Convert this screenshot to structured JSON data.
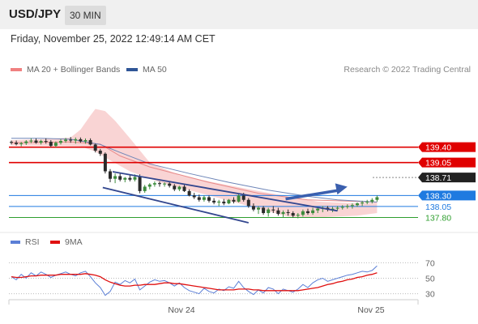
{
  "header": {
    "symbol": "USD/JPY",
    "timeframe": "30 MIN"
  },
  "datetime": "Friday, November 25, 2022 12:49:14 AM CET",
  "legend": {
    "ma_bb": {
      "label": "MA 20 + Bollinger Bands",
      "color": "#f08080"
    },
    "ma50": {
      "label": "MA 50",
      "color": "#2f5597"
    }
  },
  "credit": "Research © 2022 Trading Central",
  "rsi_legend": {
    "rsi": {
      "label": "RSI",
      "color": "#5b7fd6"
    },
    "ma9": {
      "label": "9MA",
      "color": "#e01010"
    }
  },
  "chart_data": [
    {
      "type": "candlestick",
      "price_ylim": [
        137.55,
        140.5
      ],
      "x_tick_labels": [
        {
          "label": "Nov 24",
          "index": 40
        },
        {
          "label": "Nov 25",
          "index": 89
        }
      ],
      "candles": [
        [
          139.52,
          139.55,
          139.46,
          139.5
        ],
        [
          139.5,
          139.55,
          139.44,
          139.47
        ],
        [
          139.47,
          139.52,
          139.42,
          139.49
        ],
        [
          139.49,
          139.56,
          139.45,
          139.53
        ],
        [
          139.53,
          139.6,
          139.49,
          139.55
        ],
        [
          139.55,
          139.6,
          139.48,
          139.5
        ],
        [
          139.5,
          139.57,
          139.46,
          139.54
        ],
        [
          139.54,
          139.6,
          139.48,
          139.52
        ],
        [
          139.52,
          139.56,
          139.4,
          139.43
        ],
        [
          139.43,
          139.53,
          139.4,
          139.5
        ],
        [
          139.5,
          139.58,
          139.46,
          139.54
        ],
        [
          139.54,
          139.61,
          139.5,
          139.57
        ],
        [
          139.57,
          139.63,
          139.5,
          139.55
        ],
        [
          139.55,
          139.62,
          139.48,
          139.58
        ],
        [
          139.58,
          139.62,
          139.5,
          139.53
        ],
        [
          139.53,
          139.6,
          139.48,
          139.56
        ],
        [
          139.56,
          139.6,
          139.44,
          139.46
        ],
        [
          139.46,
          139.48,
          139.28,
          139.32
        ],
        [
          139.32,
          139.36,
          139.2,
          139.25
        ],
        [
          139.25,
          139.28,
          138.8,
          138.85
        ],
        [
          138.85,
          138.9,
          138.6,
          138.68
        ],
        [
          138.68,
          138.8,
          138.58,
          138.74
        ],
        [
          138.74,
          138.82,
          138.62,
          138.66
        ],
        [
          138.66,
          138.72,
          138.6,
          138.7
        ],
        [
          138.7,
          138.76,
          138.62,
          138.66
        ],
        [
          138.66,
          138.78,
          138.62,
          138.72
        ],
        [
          138.72,
          138.78,
          138.35,
          138.4
        ],
        [
          138.4,
          138.54,
          138.36,
          138.5
        ],
        [
          138.5,
          138.58,
          138.44,
          138.55
        ],
        [
          138.55,
          138.62,
          138.5,
          138.58
        ],
        [
          138.58,
          138.62,
          138.5,
          138.56
        ],
        [
          138.56,
          138.6,
          138.5,
          138.57
        ],
        [
          138.57,
          138.6,
          138.48,
          138.52
        ],
        [
          138.52,
          138.56,
          138.4,
          138.44
        ],
        [
          138.44,
          138.52,
          138.4,
          138.5
        ],
        [
          138.5,
          138.54,
          138.38,
          138.4
        ],
        [
          138.4,
          138.44,
          138.28,
          138.3
        ],
        [
          138.3,
          138.36,
          138.22,
          138.26
        ],
        [
          138.26,
          138.32,
          138.16,
          138.2
        ],
        [
          138.2,
          138.3,
          138.16,
          138.26
        ],
        [
          138.26,
          138.3,
          138.14,
          138.18
        ],
        [
          138.18,
          138.24,
          138.1,
          138.14
        ],
        [
          138.14,
          138.2,
          138.06,
          138.16
        ],
        [
          138.16,
          138.22,
          138.08,
          138.12
        ],
        [
          138.12,
          138.22,
          138.1,
          138.2
        ],
        [
          138.2,
          138.26,
          138.12,
          138.16
        ],
        [
          138.16,
          138.34,
          138.14,
          138.3
        ],
        [
          138.3,
          138.36,
          138.16,
          138.2
        ],
        [
          138.2,
          138.24,
          138.02,
          138.06
        ],
        [
          138.06,
          138.12,
          137.94,
          137.98
        ],
        [
          137.98,
          138.06,
          137.88,
          138.02
        ],
        [
          138.02,
          138.06,
          137.86,
          137.9
        ],
        [
          137.9,
          138.02,
          137.82,
          137.98
        ],
        [
          137.98,
          138.06,
          137.9,
          137.96
        ],
        [
          137.96,
          138.02,
          137.84,
          137.88
        ],
        [
          137.88,
          137.96,
          137.8,
          137.92
        ],
        [
          137.92,
          137.98,
          137.84,
          137.9
        ],
        [
          137.9,
          137.94,
          137.8,
          137.84
        ],
        [
          137.84,
          137.9,
          137.78,
          137.86
        ],
        [
          137.86,
          137.98,
          137.82,
          137.94
        ],
        [
          137.94,
          138.0,
          137.86,
          137.9
        ],
        [
          137.9,
          138.02,
          137.86,
          137.96
        ],
        [
          137.96,
          138.04,
          137.9,
          138.0
        ],
        [
          138.0,
          138.06,
          137.92,
          138.02
        ],
        [
          138.02,
          138.06,
          137.94,
          137.98
        ],
        [
          137.98,
          138.04,
          137.92,
          138.0
        ],
        [
          138.0,
          138.06,
          137.96,
          138.02
        ],
        [
          138.02,
          138.08,
          137.98,
          138.04
        ],
        [
          138.04,
          138.1,
          138.0,
          138.06
        ],
        [
          138.06,
          138.12,
          138.0,
          138.08
        ],
        [
          138.08,
          138.14,
          138.04,
          138.12
        ],
        [
          138.12,
          138.18,
          138.06,
          138.14
        ],
        [
          138.14,
          138.2,
          138.1,
          138.16
        ],
        [
          138.16,
          138.24,
          138.12,
          138.2
        ],
        [
          138.2,
          138.3,
          138.16,
          138.26
        ]
      ],
      "ma20": [
        [
          0,
          139.5
        ],
        [
          12,
          139.52
        ],
        [
          18,
          139.47
        ],
        [
          22,
          139.2
        ],
        [
          28,
          138.95
        ],
        [
          40,
          138.6
        ],
        [
          50,
          138.35
        ],
        [
          60,
          138.2
        ],
        [
          74,
          138.15
        ]
      ],
      "bollinger_upper": [
        [
          0,
          139.56
        ],
        [
          6,
          139.58
        ],
        [
          12,
          139.62
        ],
        [
          14,
          139.8
        ],
        [
          16,
          140.12
        ],
        [
          17,
          140.27
        ],
        [
          19,
          140.22
        ],
        [
          21,
          140.0
        ],
        [
          24,
          139.6
        ],
        [
          28,
          139.05
        ],
        [
          34,
          138.76
        ],
        [
          40,
          138.62
        ],
        [
          50,
          138.4
        ],
        [
          56,
          138.28
        ],
        [
          62,
          138.16
        ],
        [
          70,
          138.12
        ],
        [
          74,
          138.14
        ]
      ],
      "bollinger_lower": [
        [
          0,
          139.44
        ],
        [
          10,
          139.43
        ],
        [
          14,
          139.42
        ],
        [
          17,
          139.3
        ],
        [
          20,
          139.1
        ],
        [
          24,
          138.85
        ],
        [
          30,
          138.6
        ],
        [
          40,
          138.3
        ],
        [
          50,
          138.0
        ],
        [
          56,
          137.82
        ],
        [
          62,
          137.8
        ],
        [
          70,
          137.84
        ],
        [
          74,
          137.9
        ]
      ],
      "ma50": [
        [
          0,
          139.6
        ],
        [
          6,
          139.6
        ],
        [
          12,
          139.58
        ],
        [
          18,
          139.46
        ],
        [
          22,
          139.28
        ],
        [
          28,
          139.02
        ],
        [
          36,
          138.8
        ],
        [
          44,
          138.6
        ],
        [
          52,
          138.42
        ],
        [
          60,
          138.28
        ],
        [
          66,
          138.2
        ],
        [
          74,
          138.15
        ]
      ],
      "channel_upper": [
        [
          20.5,
          138.84
        ],
        [
          66,
          137.95
        ]
      ],
      "channel_lower": [
        [
          18.5,
          138.48
        ],
        [
          48,
          137.68
        ]
      ],
      "forecast_arrow": [
        [
          55.5,
          138.22
        ],
        [
          68,
          138.5
        ]
      ],
      "levels": [
        {
          "value": 139.4,
          "label": "139.40",
          "color": "#e00000",
          "box": "#e00000",
          "line": "solid"
        },
        {
          "value": 139.05,
          "label": "139.05",
          "color": "#e00000",
          "box": "#e00000",
          "line": "solid"
        },
        {
          "value": 138.71,
          "label": "138.71",
          "color": "#888888",
          "box": "#222222",
          "line": "dotted"
        },
        {
          "value": 138.3,
          "label": "138.30",
          "color": "#1f7ae0",
          "box": "#1f7ae0",
          "line": "solid"
        },
        {
          "value": 138.05,
          "label": "138.05",
          "color": "#1f7ae0",
          "box": "",
          "line": "solid"
        },
        {
          "value": 137.8,
          "label": "137.80",
          "color": "#2e9e2e",
          "box": "",
          "line": "solid"
        }
      ]
    },
    {
      "type": "line",
      "panel": "RSI",
      "ylim": [
        15,
        85
      ],
      "y_tick_labels": [
        "70",
        "50",
        "30"
      ],
      "y_ticks": [
        70,
        50,
        30
      ],
      "series": [
        {
          "name": "RSI",
          "values": [
            52,
            48,
            55,
            50,
            57,
            53,
            58,
            55,
            51,
            54,
            56,
            58,
            55,
            53,
            57,
            59,
            52,
            44,
            38,
            28,
            33,
            45,
            42,
            47,
            44,
            49,
            35,
            40,
            45,
            48,
            46,
            47,
            44,
            40,
            44,
            38,
            34,
            32,
            30,
            37,
            33,
            31,
            36,
            34,
            39,
            37,
            46,
            38,
            33,
            29,
            35,
            31,
            38,
            36,
            30,
            36,
            34,
            32,
            36,
            42,
            38,
            44,
            48,
            50,
            46,
            48,
            50,
            52,
            54,
            55,
            57,
            59,
            58,
            60,
            66
          ]
        },
        {
          "name": "9MA",
          "values": [
            52,
            51,
            51,
            52,
            53,
            53,
            54,
            54,
            54,
            54,
            55,
            55,
            55,
            55,
            55,
            56,
            55,
            54,
            52,
            48,
            45,
            43,
            41,
            40,
            40,
            41,
            41,
            42,
            42,
            42,
            43,
            44,
            44,
            43,
            43,
            42,
            41,
            40,
            39,
            38,
            37,
            36,
            35,
            35,
            35,
            35,
            36,
            36,
            36,
            35,
            35,
            34,
            34,
            34,
            34,
            34,
            34,
            34,
            34,
            35,
            36,
            37,
            38,
            40,
            42,
            43,
            45,
            46,
            48,
            49,
            51,
            52,
            54,
            55,
            57
          ]
        }
      ]
    }
  ]
}
